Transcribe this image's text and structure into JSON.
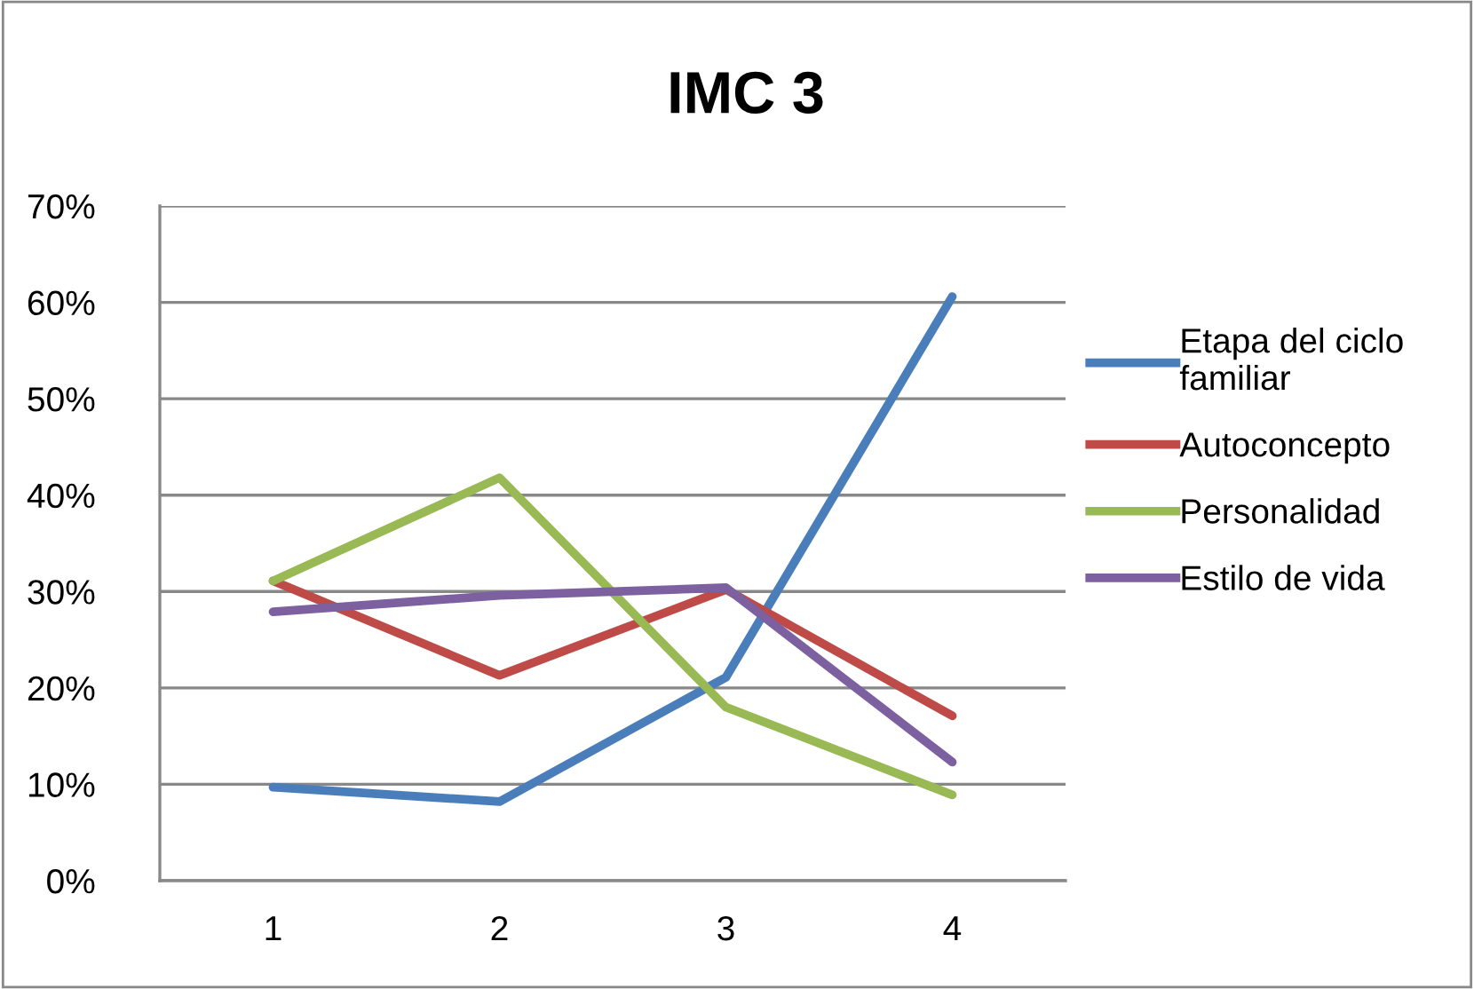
{
  "chart_data": {
    "type": "line",
    "title": "IMC 3",
    "categories": [
      "1",
      "2",
      "3",
      "4"
    ],
    "series": [
      {
        "name": "Etapa del ciclo familiar",
        "color": "#4a7ebb",
        "values": [
          9.7,
          8.2,
          21.1,
          60.6
        ]
      },
      {
        "name": "Autoconcepto",
        "color": "#be4b48",
        "values": [
          31.1,
          21.3,
          30.2,
          17.1
        ]
      },
      {
        "name": "Personalidad",
        "color": "#98b954",
        "values": [
          31.1,
          41.8,
          18.0,
          8.9
        ]
      },
      {
        "name": "Estilo de vida",
        "color": "#7d60a0",
        "values": [
          27.9,
          29.6,
          30.4,
          12.3
        ]
      }
    ],
    "ylim": [
      0,
      70
    ],
    "yticks": [
      {
        "value": 0,
        "label": "0%"
      },
      {
        "value": 10,
        "label": "10%"
      },
      {
        "value": 20,
        "label": "20%"
      },
      {
        "value": 30,
        "label": "30%"
      },
      {
        "value": 40,
        "label": "40%"
      },
      {
        "value": 50,
        "label": "50%"
      },
      {
        "value": 60,
        "label": "60%"
      },
      {
        "value": 70,
        "label": "70%"
      }
    ],
    "grid": "y",
    "legend": "right",
    "marker": "none",
    "line_style": "solid"
  }
}
